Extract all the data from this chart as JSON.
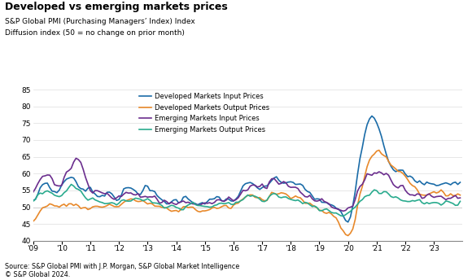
{
  "title": "Developed vs emerging markets prices",
  "subtitle1": "S&P Global PMI (Purchasing Managers’ Index) Index",
  "subtitle2": "Diffusion index (50 = no change on prior month)",
  "source": "Source: S&P Global PMI with J.P. Morgan, S&P Global Market Intelligence\n© S&P Global 2024.",
  "ylim": [
    40,
    85
  ],
  "yticks": [
    40,
    45,
    50,
    55,
    60,
    65,
    70,
    75,
    80,
    85
  ],
  "hline": 50,
  "colors": {
    "dev_input": "#1b6ca8",
    "dev_output": "#e8892b",
    "em_input": "#6b2e8e",
    "em_output": "#2aab8e"
  },
  "legend_labels": [
    "Developed Markets Input Prices",
    "Developed Markets Output Prices",
    "Emerging Markets Input Prices",
    "Emerging Markets Output Prices"
  ],
  "xtick_labels": [
    "'09",
    "'10",
    "'11",
    "'12",
    "'13",
    "'14",
    "'15",
    "'16",
    "'17",
    "'18",
    "'19",
    "'20",
    "'21",
    "'22",
    "'23"
  ]
}
